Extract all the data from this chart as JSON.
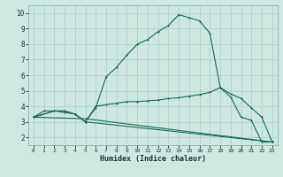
{
  "xlabel": "Humidex (Indice chaleur)",
  "background_color": "#cce8e0",
  "grid_color": "#aacfc8",
  "line_color": "#1a6b5a",
  "xlim": [
    -0.5,
    23.5
  ],
  "ylim": [
    1.5,
    10.5
  ],
  "xticks": [
    0,
    1,
    2,
    3,
    4,
    5,
    6,
    7,
    8,
    9,
    10,
    11,
    12,
    13,
    14,
    15,
    16,
    17,
    18,
    19,
    20,
    21,
    22,
    23
  ],
  "yticks": [
    2,
    3,
    4,
    5,
    6,
    7,
    8,
    9,
    10
  ],
  "line1_x": [
    0,
    1,
    2,
    3,
    4,
    5,
    6,
    7,
    8,
    9,
    10,
    11,
    12,
    13,
    14,
    15,
    16,
    17,
    18,
    19,
    20,
    21,
    22,
    23
  ],
  "line1_y": [
    3.3,
    3.7,
    3.7,
    3.6,
    3.5,
    3.0,
    3.9,
    5.9,
    6.5,
    7.3,
    8.0,
    8.3,
    8.8,
    9.2,
    9.9,
    9.7,
    9.5,
    8.7,
    5.2,
    4.6,
    3.3,
    3.1,
    1.7,
    1.7
  ],
  "line2_x": [
    0,
    2,
    3,
    4,
    5,
    6,
    7,
    8,
    9,
    10,
    11,
    12,
    13,
    14,
    15,
    16,
    17,
    18,
    19,
    20,
    21,
    22,
    23
  ],
  "line2_y": [
    3.3,
    3.7,
    3.7,
    3.5,
    3.0,
    4.0,
    4.1,
    4.2,
    4.3,
    4.3,
    4.35,
    4.4,
    4.5,
    4.55,
    4.65,
    4.75,
    4.9,
    5.2,
    4.8,
    4.5,
    3.9,
    3.3,
    1.7
  ],
  "line3_x": [
    0,
    2,
    3,
    4,
    5,
    23
  ],
  "line3_y": [
    3.3,
    3.7,
    3.7,
    3.5,
    3.0,
    1.7
  ],
  "line4_x": [
    0,
    5,
    23
  ],
  "line4_y": [
    3.3,
    3.2,
    1.7
  ]
}
